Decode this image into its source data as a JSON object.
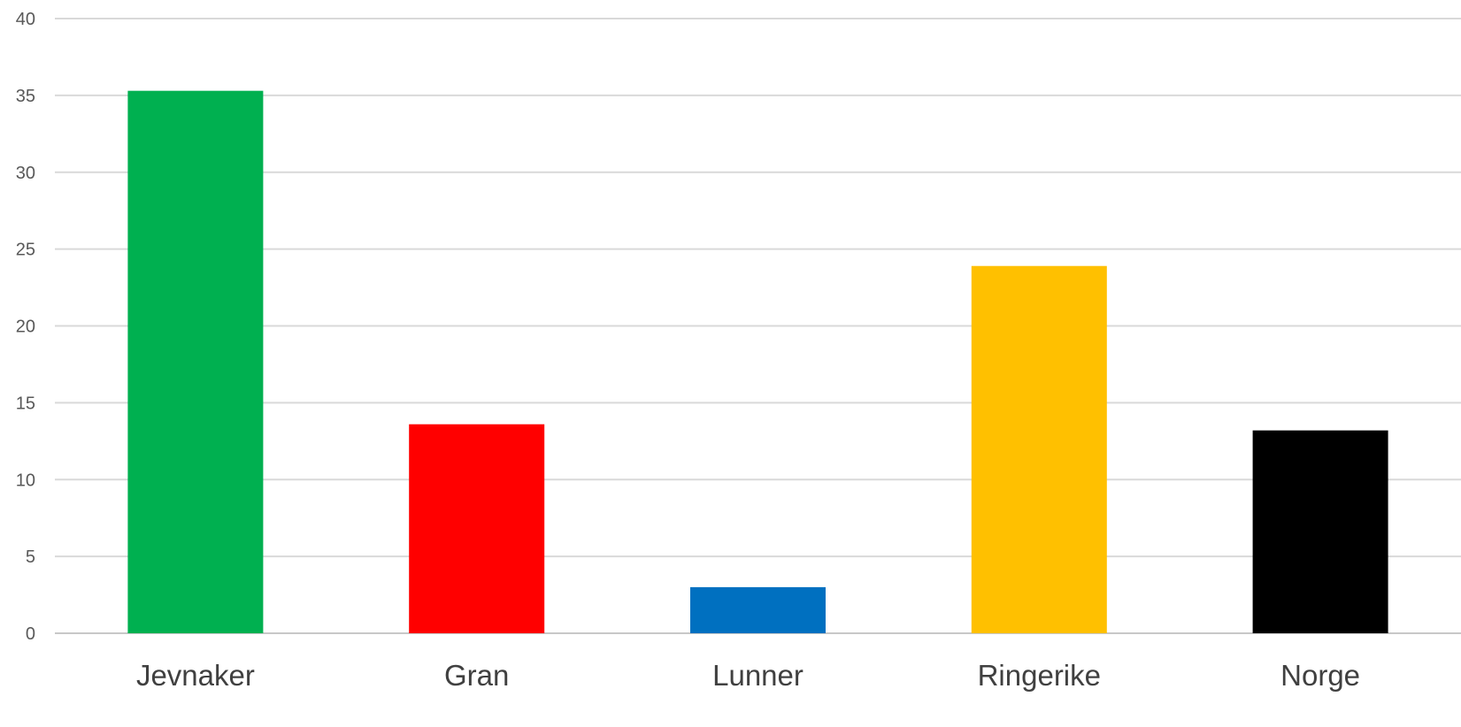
{
  "chart_data": {
    "type": "bar",
    "title": "",
    "xlabel": "",
    "ylabel": "",
    "categories": [
      "Jevnaker",
      "Gran",
      "Lunner",
      "Ringerike",
      "Norge"
    ],
    "values": [
      35.3,
      13.6,
      3.0,
      23.9,
      13.2
    ],
    "bar_colors": [
      "#00B050",
      "#FF0000",
      "#0070C0",
      "#FFC000",
      "#000000"
    ],
    "ylim": [
      0,
      40
    ],
    "yticks": [
      0,
      5,
      10,
      15,
      20,
      25,
      30,
      35,
      40
    ],
    "grid": true,
    "legend": "none"
  }
}
